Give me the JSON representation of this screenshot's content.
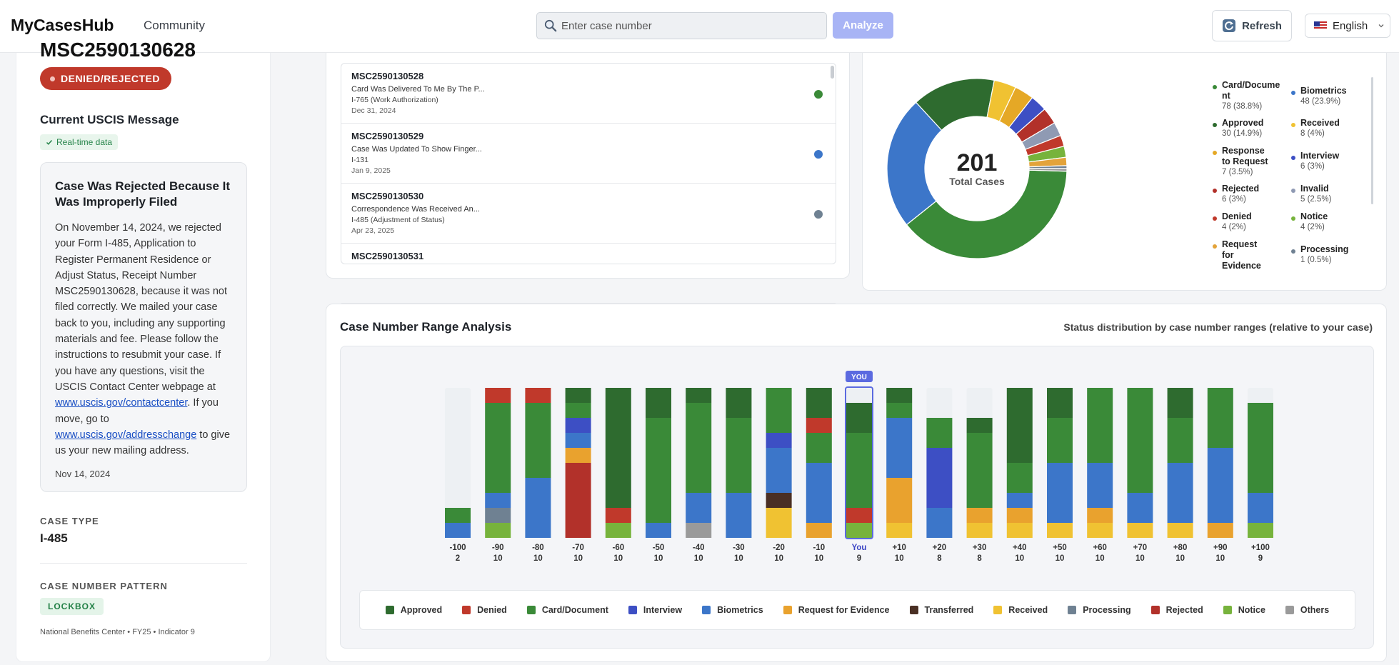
{
  "header": {
    "brand": "MyCasesHub",
    "community": "Community",
    "search_placeholder": "Enter case number",
    "analyze": "Analyze",
    "refresh": "Refresh",
    "language": "English"
  },
  "colors": {
    "Approved": "#2e6b2f",
    "Denied": "#c0392b",
    "Card/Document": "#3a8a38",
    "Interview": "#3d4fc4",
    "Biometrics": "#3c76c9",
    "Request for Evidence": "#e9a22e",
    "Transferred": "#4a2f24",
    "Received": "#f0c232",
    "Processing": "#6f8192",
    "Rejected": "#b2312a",
    "Notice": "#77b33c",
    "Others": "#9a9a9a",
    "Invalid": "#8f9ab3",
    "Response to Request": "#e5a826",
    "Request for Evidence2": "#e3a33a"
  },
  "left": {
    "case_number_partial": "MSC2590130628",
    "status_badge": "DENIED/REJECTED",
    "message_title": "Current USCIS Message",
    "realtime": "Real-time data",
    "message_heading": "Case Was Rejected Because It Was Improperly Filed",
    "message_p1": "On November 14, 2024, we rejected your Form I-485, Application to Register Permanent Residence or Adjust Status, Receipt Number MSC2590130628, because it was not filed correctly. We mailed your case back to you, including any supporting materials and fee. Please follow the instructions to resubmit your case. If you have any questions, visit the USCIS Contact Center webpage at ",
    "link1": "www.uscis.gov/contactcenter",
    "message_p2": ". If you move, go to ",
    "link2": "www.uscis.gov/addresschange",
    "message_p3": " to give us your new mailing address.",
    "message_date": "Nov 14, 2024",
    "case_type_label": "CASE TYPE",
    "case_type": "I-485",
    "pattern_label": "CASE NUMBER PATTERN",
    "pattern": "LOCKBOX",
    "pattern_footer": "National Benefits Center • FY25 • Indicator 9"
  },
  "cases": [
    {
      "id": "MSC2590130528",
      "msg": "Card Was Delivered To Me By The P...",
      "form": "I-765 (Work Authorization)",
      "date": "Dec 31, 2024",
      "color": "#3a8a38"
    },
    {
      "id": "MSC2590130529",
      "msg": "Case Was Updated To Show Finger...",
      "form": "I-131",
      "date": "Jan 9, 2025",
      "color": "#3c76c9"
    },
    {
      "id": "MSC2590130530",
      "msg": "Correspondence Was Received An...",
      "form": "I-485 (Adjustment of Status)",
      "date": "Apr 23, 2025",
      "color": "#6f8192"
    },
    {
      "id": "MSC2590130531",
      "msg": "",
      "form": "",
      "date": "",
      "color": ""
    }
  ],
  "donut": {
    "total": "201",
    "total_label": "Total Cases",
    "slices": [
      {
        "name": "Card/Document",
        "count": 78,
        "label": "78 (38.8%)",
        "color": "#3a8a38"
      },
      {
        "name": "Biometrics",
        "count": 48,
        "label": "48 (23.9%)",
        "color": "#3c76c9"
      },
      {
        "name": "Approved",
        "count": 30,
        "label": "30 (14.9%)",
        "color": "#2e6b2f"
      },
      {
        "name": "Received",
        "count": 8,
        "label": "8 (4%)",
        "color": "#f0c232"
      },
      {
        "name": "Response to Request",
        "count": 7,
        "label": "7 (3.5%)",
        "color": "#e5a826"
      },
      {
        "name": "Interview",
        "count": 6,
        "label": "6 (3%)",
        "color": "#3d4fc4"
      },
      {
        "name": "Rejected",
        "count": 6,
        "label": "6 (3%)",
        "color": "#b2312a"
      },
      {
        "name": "Invalid",
        "count": 5,
        "label": "5 (2.5%)",
        "color": "#8f9ab3"
      },
      {
        "name": "Denied",
        "count": 4,
        "label": "4 (2%)",
        "color": "#c0392b"
      },
      {
        "name": "Notice",
        "count": 4,
        "label": "4 (2%)",
        "color": "#77b33c"
      },
      {
        "name": "Request for Evidence",
        "count": 3,
        "label": "",
        "color": "#e3a33a"
      },
      {
        "name": "Processing",
        "count": 1,
        "label": "1 (0.5%)",
        "color": "#6f8192"
      },
      {
        "name": "",
        "count": 1,
        "label": "",
        "color": "#9a9a9a"
      }
    ]
  },
  "range": {
    "title": "Case Number Range Analysis",
    "subtitle": "Status distribution by case number ranges (relative to your case)",
    "you_tag": "YOU"
  },
  "chart_data": {
    "type": "bar",
    "stacked": true,
    "max": 10,
    "categories": [
      "-100",
      "-90",
      "-80",
      "-70",
      "-60",
      "-50",
      "-40",
      "-30",
      "-20",
      "-10",
      "You",
      "+10",
      "+20",
      "+30",
      "+40",
      "+50",
      "+60",
      "+70",
      "+80",
      "+90",
      "+100"
    ],
    "totals": [
      2,
      10,
      10,
      10,
      10,
      10,
      10,
      10,
      10,
      10,
      9,
      10,
      8,
      8,
      10,
      10,
      10,
      10,
      10,
      10,
      9
    ],
    "stacks": [
      [
        [
          "Biometrics",
          1
        ],
        [
          "Card/Document",
          1
        ]
      ],
      [
        [
          "Notice",
          1
        ],
        [
          "Processing",
          1
        ],
        [
          "Biometrics",
          1
        ],
        [
          "Card/Document",
          6
        ],
        [
          "Denied",
          1
        ]
      ],
      [
        [
          "Biometrics",
          4
        ],
        [
          "Card/Document",
          5
        ],
        [
          "Denied",
          1
        ]
      ],
      [
        [
          "Rejected",
          5
        ],
        [
          "Request for Evidence",
          1
        ],
        [
          "Biometrics",
          1
        ],
        [
          "Interview",
          1
        ],
        [
          "Card/Document",
          1
        ],
        [
          "Approved",
          1
        ]
      ],
      [
        [
          "Notice",
          1
        ],
        [
          "Denied",
          1
        ],
        [
          "Approved",
          8
        ]
      ],
      [
        [
          "Biometrics",
          1
        ],
        [
          "Card/Document",
          7
        ],
        [
          "Approved",
          2
        ]
      ],
      [
        [
          "Others",
          1
        ],
        [
          "Biometrics",
          2
        ],
        [
          "Card/Document",
          6
        ],
        [
          "Approved",
          1
        ]
      ],
      [
        [
          "Biometrics",
          3
        ],
        [
          "Card/Document",
          5
        ],
        [
          "Approved",
          2
        ]
      ],
      [
        [
          "Received",
          2
        ],
        [
          "Transferred",
          1
        ],
        [
          "Biometrics",
          3
        ],
        [
          "Interview",
          1
        ],
        [
          "Card/Document",
          3
        ]
      ],
      [
        [
          "Request for Evidence",
          1
        ],
        [
          "Biometrics",
          4
        ],
        [
          "Card/Document",
          2
        ],
        [
          "Denied",
          1
        ],
        [
          "Approved",
          2
        ]
      ],
      [
        [
          "Notice",
          1
        ],
        [
          "Denied",
          1
        ],
        [
          "Card/Document",
          5
        ],
        [
          "Approved",
          2
        ]
      ],
      [
        [
          "Received",
          1
        ],
        [
          "Request for Evidence",
          3
        ],
        [
          "Biometrics",
          4
        ],
        [
          "Card/Document",
          1
        ],
        [
          "Approved",
          1
        ]
      ],
      [
        [
          "Biometrics",
          2
        ],
        [
          "Interview",
          4
        ],
        [
          "Card/Document",
          2
        ]
      ],
      [
        [
          "Received",
          1
        ],
        [
          "Request for Evidence",
          1
        ],
        [
          "Card/Document",
          5
        ],
        [
          "Approved",
          1
        ]
      ],
      [
        [
          "Received",
          1
        ],
        [
          "Request for Evidence",
          1
        ],
        [
          "Biometrics",
          1
        ],
        [
          "Card/Document",
          2
        ],
        [
          "Approved",
          5
        ]
      ],
      [
        [
          "Received",
          1
        ],
        [
          "Biometrics",
          4
        ],
        [
          "Card/Document",
          3
        ],
        [
          "Approved",
          2
        ]
      ],
      [
        [
          "Received",
          1
        ],
        [
          "Request for Evidence",
          1
        ],
        [
          "Biometrics",
          3
        ],
        [
          "Card/Document",
          5
        ]
      ],
      [
        [
          "Received",
          1
        ],
        [
          "Biometrics",
          2
        ],
        [
          "Card/Document",
          7
        ]
      ],
      [
        [
          "Received",
          1
        ],
        [
          "Biometrics",
          4
        ],
        [
          "Card/Document",
          3
        ],
        [
          "Approved",
          2
        ]
      ],
      [
        [
          "Request for Evidence",
          1
        ],
        [
          "Biometrics",
          5
        ],
        [
          "Card/Document",
          4
        ]
      ],
      [
        [
          "Notice",
          1
        ],
        [
          "Biometrics",
          2
        ],
        [
          "Card/Document",
          6
        ]
      ]
    ],
    "legend": [
      "Approved",
      "Denied",
      "Card/Document",
      "Interview",
      "Biometrics",
      "Request for Evidence",
      "Transferred",
      "Received",
      "Processing",
      "Rejected",
      "Notice",
      "Others"
    ]
  }
}
